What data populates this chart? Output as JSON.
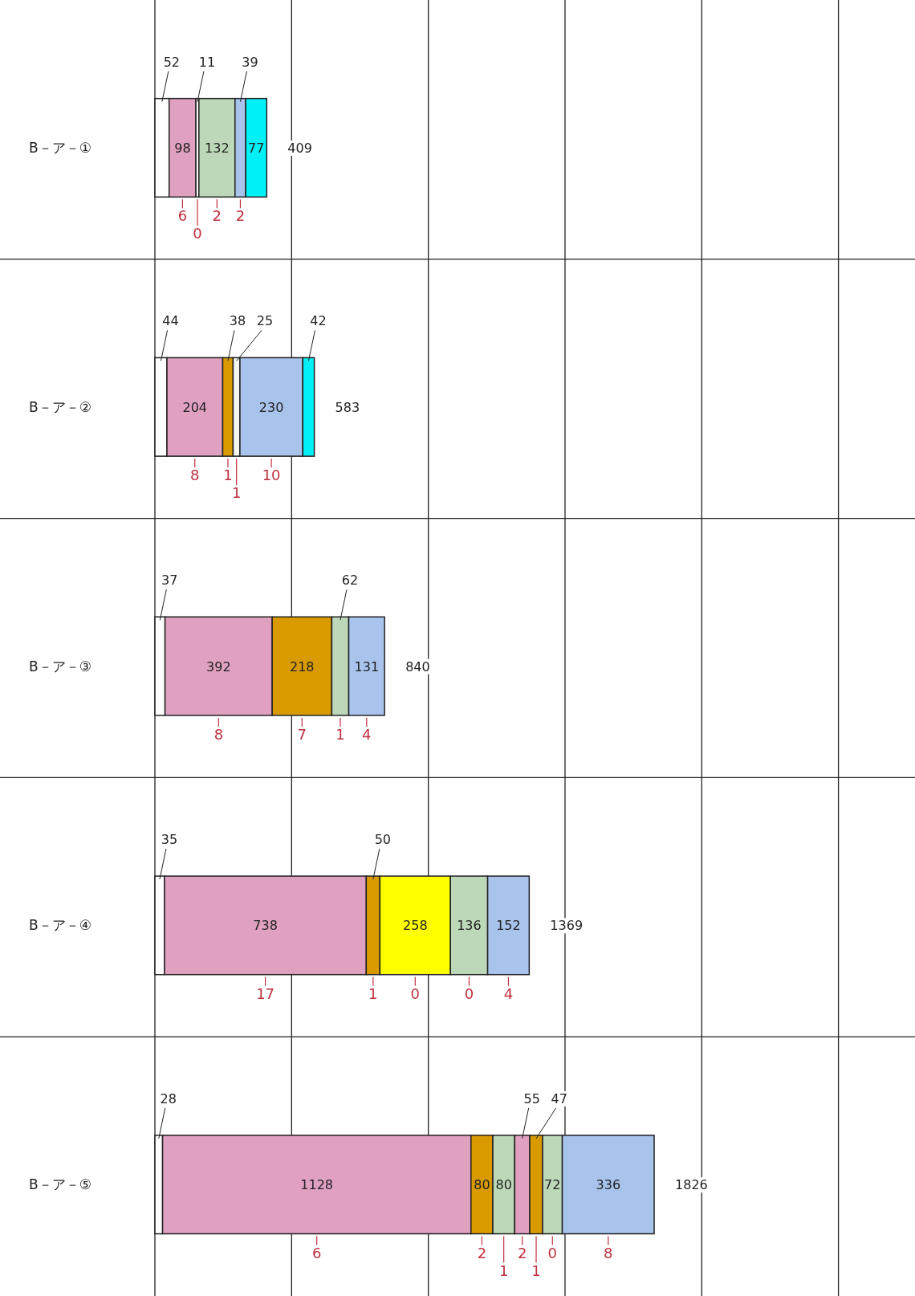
{
  "chart_data": {
    "type": "bar",
    "orientation": "horizontal",
    "stacked": true,
    "data_labels": true,
    "grid": "x",
    "tick_labels": "y",
    "categories": [
      "B－ア－①",
      "B－ア－②",
      "B－ア－③",
      "B－ア－④",
      "B－ア－⑤"
    ],
    "xlim": [
      0,
      2780
    ],
    "xticks": [
      {
        "value": 0,
        "label": null
      },
      {
        "value": 500,
        "label": null
      },
      {
        "value": 1000,
        "label": null
      },
      {
        "value": 1500,
        "label": null
      },
      {
        "value": 2000,
        "label": null
      },
      {
        "value": 2500,
        "label": null
      }
    ],
    "series": [
      {
        "values": [
          52,
          44,
          37,
          35,
          28
        ],
        "colors": [
          "#ffffff",
          "#ffffff",
          "#ffffff",
          "#ffffff",
          "#ffffff"
        ]
      },
      {
        "values": [
          98,
          204,
          392,
          738,
          1128
        ],
        "colors": [
          "#e0a0c0",
          "#e0a0c0",
          "#e0a0c0",
          "#e0a0c0",
          "#e0a0c0"
        ]
      },
      {
        "values": [
          11,
          38,
          218,
          50,
          80
        ],
        "colors": [
          "#ffffff",
          "#d99a00",
          "#d99a00",
          "#d99a00",
          "#d99a00"
        ]
      },
      {
        "values": [
          132,
          25,
          62,
          258,
          80
        ],
        "colors": [
          "#bcd8b8",
          "#f4f8f0",
          "#bcd8b8",
          "#ffff00",
          "#bcd8b8"
        ]
      },
      {
        "values": [
          39,
          230,
          131,
          136,
          55
        ],
        "colors": [
          "#a8c4ec",
          "#a8c4ec",
          "#a8c4ec",
          "#bcd8b8",
          "#e0a0c0"
        ]
      },
      {
        "values": [
          77,
          42,
          null,
          152,
          47
        ],
        "colors": [
          "#00f0f8",
          "#00f0f8",
          null,
          "#a8c4ec",
          "#d99a00"
        ]
      },
      {
        "values": [
          null,
          null,
          null,
          null,
          72
        ],
        "colors": [
          null,
          null,
          null,
          null,
          "#bcd8b8"
        ]
      },
      {
        "values": [
          null,
          null,
          null,
          null,
          336
        ],
        "colors": [
          null,
          null,
          null,
          null,
          "#a8c4ec"
        ]
      }
    ],
    "totals": [
      "409",
      "583",
      "840",
      "1369",
      "1826"
    ],
    "annotations": [
      "6",
      "0",
      "2",
      "2",
      "8",
      "1",
      "1",
      "10",
      "8",
      "7",
      "1",
      "4",
      "17",
      "1",
      "0",
      "0",
      "4",
      "6",
      "2",
      "1",
      "2",
      "1",
      "0",
      "8"
    ]
  }
}
